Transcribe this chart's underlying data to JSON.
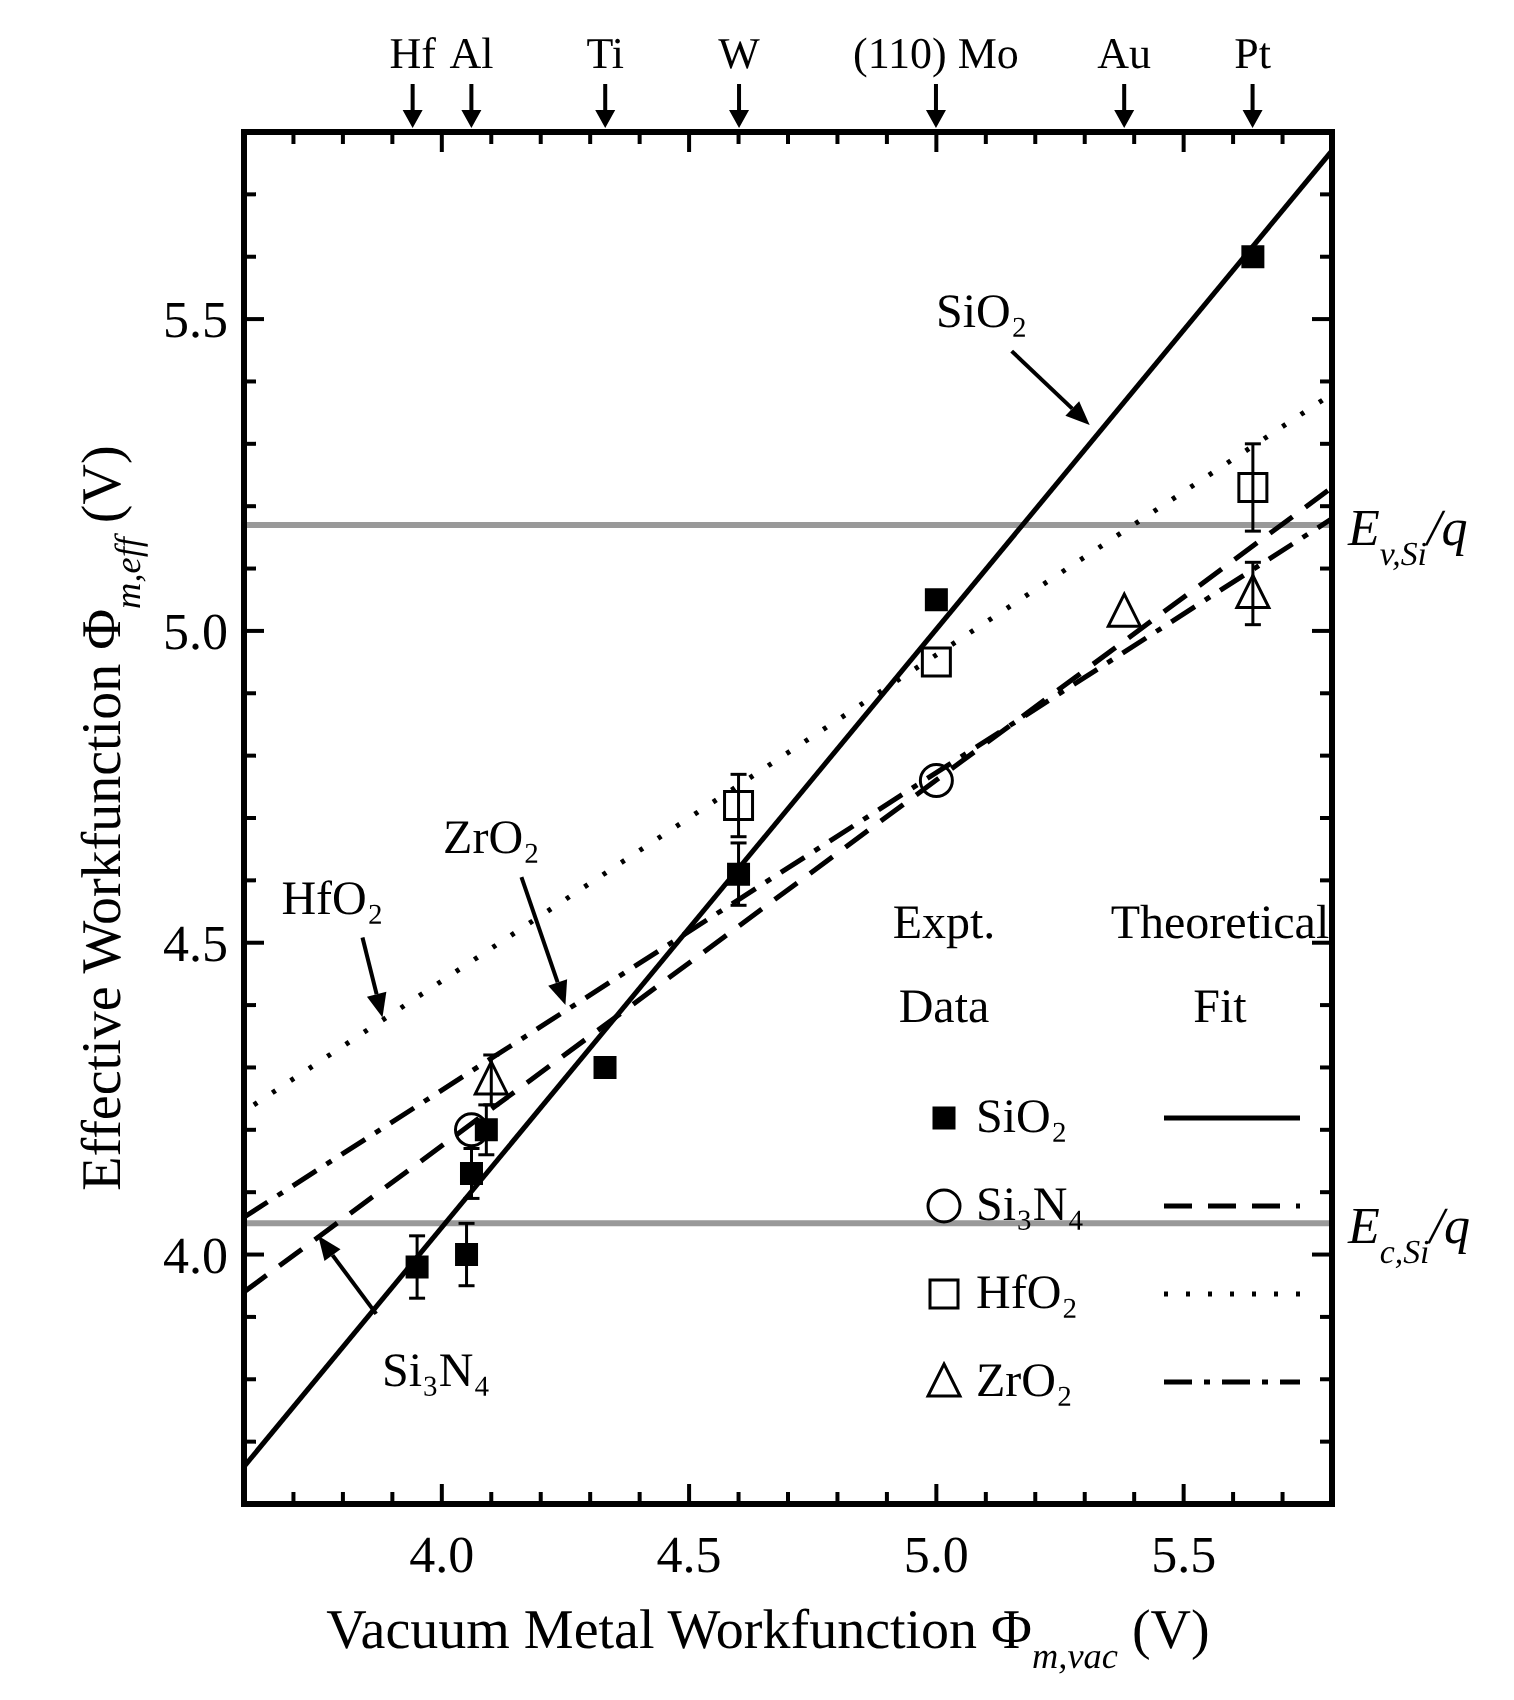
{
  "chart_data": {
    "type": "scatter",
    "xlabel": "Vacuum Metal Workfunction Φ$_{m,vac}$ (V)",
    "ylabel": "Effective Workfunction Φ$_{m,eff}$ (V)",
    "xlim": [
      3.6,
      5.8
    ],
    "ylim": [
      3.6,
      5.8
    ],
    "xticks": [
      {
        "value": 3.7,
        "label": null
      },
      {
        "value": 3.8,
        "label": null
      },
      {
        "value": 3.9,
        "label": null
      },
      {
        "value": 4.0,
        "label": "4.0"
      },
      {
        "value": 4.1,
        "label": null
      },
      {
        "value": 4.2,
        "label": null
      },
      {
        "value": 4.3,
        "label": null
      },
      {
        "value": 4.4,
        "label": null
      },
      {
        "value": 4.5,
        "label": "4.5"
      },
      {
        "value": 4.6,
        "label": null
      },
      {
        "value": 4.7,
        "label": null
      },
      {
        "value": 4.8,
        "label": null
      },
      {
        "value": 4.9,
        "label": null
      },
      {
        "value": 5.0,
        "label": "5.0"
      },
      {
        "value": 5.1,
        "label": null
      },
      {
        "value": 5.2,
        "label": null
      },
      {
        "value": 5.3,
        "label": null
      },
      {
        "value": 5.4,
        "label": null
      },
      {
        "value": 5.5,
        "label": "5.5"
      },
      {
        "value": 5.6,
        "label": null
      },
      {
        "value": 5.7,
        "label": null
      }
    ],
    "yticks": [
      {
        "value": 3.7,
        "label": null
      },
      {
        "value": 3.8,
        "label": null
      },
      {
        "value": 3.9,
        "label": null
      },
      {
        "value": 4.0,
        "label": "4.0"
      },
      {
        "value": 4.1,
        "label": null
      },
      {
        "value": 4.2,
        "label": null
      },
      {
        "value": 4.3,
        "label": null
      },
      {
        "value": 4.4,
        "label": null
      },
      {
        "value": 4.5,
        "label": "4.5"
      },
      {
        "value": 4.6,
        "label": null
      },
      {
        "value": 4.7,
        "label": null
      },
      {
        "value": 4.8,
        "label": null
      },
      {
        "value": 4.9,
        "label": null
      },
      {
        "value": 5.0,
        "label": "5.0"
      },
      {
        "value": 5.1,
        "label": null
      },
      {
        "value": 5.2,
        "label": null
      },
      {
        "value": 5.3,
        "label": null
      },
      {
        "value": 5.4,
        "label": null
      },
      {
        "value": 5.5,
        "label": "5.5"
      },
      {
        "value": 5.6,
        "label": null
      },
      {
        "value": 5.7,
        "label": null
      }
    ],
    "grid": false,
    "legend": "bottom right",
    "ref_lines": [
      {
        "axis": "y",
        "value": 5.17,
        "label": "E$_{v,Si}$/q",
        "color": "#999999"
      },
      {
        "axis": "y",
        "value": 4.05,
        "label": "E$_{c,Si}$/q",
        "color": "#999999"
      }
    ],
    "annotations": [
      "Expt. Data",
      "Theoretical Fit",
      {
        "text": "SiO₂",
        "x": 5.31,
        "y": 5.33
      },
      {
        "text": "ZrO₂",
        "x": 4.25,
        "y": 4.4
      },
      {
        "text": "HfO₂",
        "x": 3.88,
        "y": 4.38
      },
      {
        "text": "Si₃N₄",
        "x": 3.75,
        "y": 4.03
      },
      "Hf",
      "Al",
      "Ti",
      "W",
      "(110) Mo",
      "Au",
      "Pt"
    ],
    "series": [
      {
        "name": "SiO₂",
        "marker": "square",
        "color": "#000000",
        "x": [
          3.95,
          4.05,
          4.06,
          4.09,
          4.33,
          4.6,
          5.0,
          5.64
        ],
        "values": [
          3.98,
          4.0,
          4.13,
          4.2,
          4.3,
          4.61,
          5.05,
          5.6
        ],
        "errors": [
          0.05,
          0.05,
          0.04,
          0.04,
          null,
          0.05,
          null,
          null
        ]
      },
      {
        "name": "Si₃N₄",
        "marker": "circle",
        "color": "#000000",
        "x": [
          4.06,
          5.0
        ],
        "values": [
          4.2,
          4.76
        ]
      },
      {
        "name": "HfO₂",
        "marker": "square",
        "color": "#000000",
        "x": [
          4.6,
          5.0,
          5.64
        ],
        "values": [
          4.72,
          4.95,
          5.23
        ],
        "errors": [
          0.05,
          null,
          0.07
        ]
      },
      {
        "name": "ZrO₂",
        "marker": "triangle",
        "color": "#000000",
        "x": [
          4.1,
          5.38,
          5.64
        ],
        "values": [
          4.28,
          5.03,
          5.06
        ],
        "errors": [
          0.04,
          null,
          0.05
        ]
      },
      {
        "type": "line",
        "line_style": "solid",
        "color": "#000000",
        "x": [
          3.6,
          5.8
        ],
        "values": [
          3.66,
          5.77
        ]
      },
      {
        "type": "line",
        "line_style": "dashed",
        "color": "#000000",
        "x": [
          3.6,
          5.8
        ],
        "values": [
          3.94,
          5.23
        ]
      },
      {
        "type": "line",
        "line_style": "dotted",
        "color": "#000000",
        "x": [
          3.62,
          5.8
        ],
        "values": [
          4.24,
          5.38
        ]
      },
      {
        "type": "line",
        "line_style": "dashdot",
        "color": "#000000",
        "x": [
          3.6,
          5.8
        ],
        "values": [
          4.06,
          5.18
        ]
      }
    ]
  }
}
